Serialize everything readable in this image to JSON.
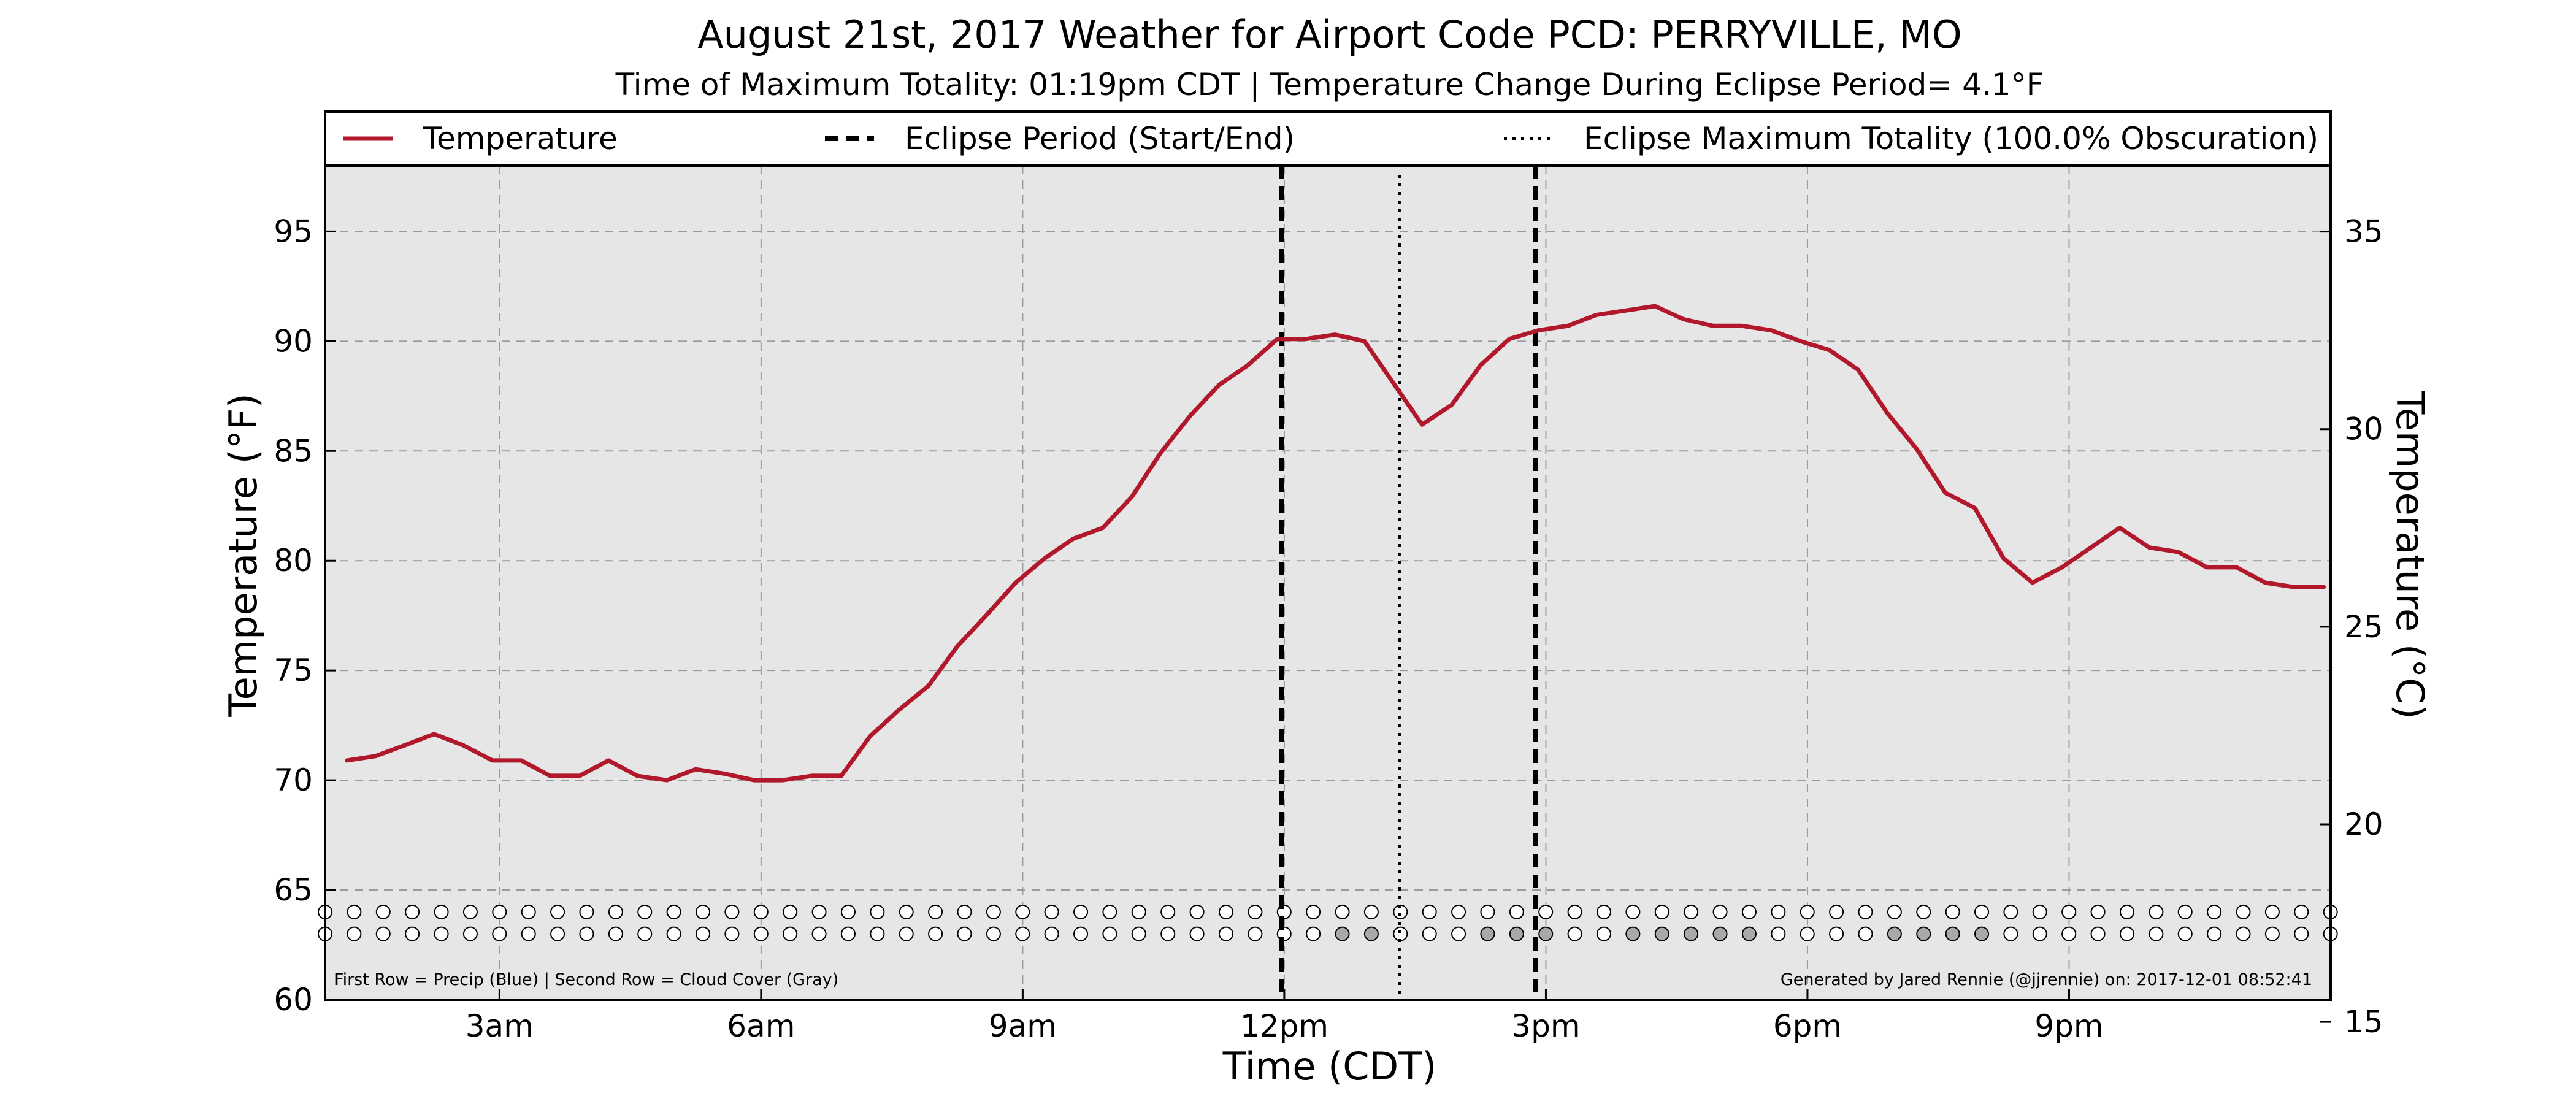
{
  "chart_data": {
    "type": "line",
    "title": "August 21st, 2017 Weather for Airport Code PCD: PERRYVILLE, MO",
    "subtitle": "Time of Maximum Totality: 01:19pm CDT | Temperature Change During Eclipse Period= 4.1$^\\circ$F",
    "subtitle_display": "Time of Maximum Totality: 01:19pm CDT | Temperature Change During Eclipse Period= 4.1°F",
    "xlabel": "Time (CDT)",
    "ylabel": "Temperature ($^\\circ$F)",
    "ylabel_display": "Temperature (°F)",
    "ylabel_right": "Temperature ($^\\circ$C)",
    "ylabel_right_display": "Temperature (°C)",
    "xlim": [
      1.0,
      24.0
    ],
    "ylim": [
      60,
      98
    ],
    "ylim_right": [
      15.56,
      36.67
    ],
    "x_ticks": [
      3,
      6,
      9,
      12,
      15,
      18,
      21
    ],
    "x_tick_labels": [
      "3am",
      "6am",
      "9am",
      "12pm",
      "3pm",
      "6pm",
      "9pm"
    ],
    "y_ticks": [
      60,
      65,
      70,
      75,
      80,
      85,
      90,
      95
    ],
    "y_tick_labels": [
      "60",
      "65",
      "70",
      "75",
      "80",
      "85",
      "90",
      "95"
    ],
    "y_ticks_right": [
      15,
      20,
      25,
      30,
      35
    ],
    "y_tick_labels_right": [
      "15",
      "20",
      "25",
      "30",
      "35"
    ],
    "grid": true,
    "legend_position": "top",
    "legend": [
      {
        "label": "Temperature",
        "style": "solid",
        "color": "#b2182b"
      },
      {
        "label": "Eclipse Period (Start/End)",
        "style": "dashed",
        "color": "#000000"
      },
      {
        "label": "Eclipse Maximum Totality (100.0% Obscuration)",
        "style": "dotted",
        "color": "#000000"
      }
    ],
    "series": [
      {
        "name": "Temperature",
        "color": "#b2182b",
        "x": [
          1.25,
          1.58,
          1.92,
          2.25,
          2.58,
          2.92,
          3.25,
          3.58,
          3.92,
          4.25,
          4.58,
          4.92,
          5.25,
          5.58,
          5.92,
          6.25,
          6.58,
          6.92,
          7.25,
          7.58,
          7.92,
          8.25,
          8.58,
          8.92,
          9.25,
          9.58,
          9.92,
          10.25,
          10.58,
          10.92,
          11.25,
          11.58,
          11.92,
          12.25,
          12.58,
          12.92,
          13.25,
          13.58,
          13.92,
          14.25,
          14.58,
          14.92,
          15.25,
          15.58,
          15.92,
          16.25,
          16.58,
          16.92,
          17.25,
          17.58,
          17.92,
          18.25,
          18.58,
          18.92,
          19.25,
          19.58,
          19.92,
          20.25,
          20.58,
          20.92,
          21.25,
          21.58,
          21.92,
          22.25,
          22.58,
          22.92,
          23.25,
          23.58,
          23.92
        ],
        "values": [
          70.9,
          71.1,
          71.6,
          72.1,
          71.6,
          70.9,
          70.9,
          70.2,
          70.2,
          70.9,
          70.2,
          70.0,
          70.5,
          70.3,
          70.0,
          70.0,
          70.2,
          70.2,
          72.0,
          73.2,
          74.3,
          76.1,
          77.5,
          79.0,
          80.1,
          81.0,
          81.5,
          82.9,
          84.9,
          86.6,
          88.0,
          88.9,
          90.1,
          90.1,
          90.3,
          90.0,
          88.1,
          86.2,
          87.1,
          88.9,
          90.1,
          90.5,
          90.7,
          91.2,
          91.4,
          91.6,
          91.0,
          90.7,
          90.7,
          90.5,
          90.0,
          89.6,
          88.7,
          86.7,
          85.1,
          83.1,
          82.4,
          80.1,
          79.0,
          79.7,
          80.6,
          81.5,
          80.6,
          80.4,
          79.7,
          79.7,
          79.0,
          78.8,
          78.8
        ]
      }
    ],
    "eclipse_start": "11:58am",
    "eclipse_start_hour": 11.97,
    "eclipse_max": "01:19pm",
    "eclipse_max_hour": 13.32,
    "eclipse_end": "02:53pm",
    "eclipse_end_hour": 14.88,
    "marker_rows": {
      "x_start": 1.0,
      "x_step": 0.3333,
      "count": 70,
      "precip_y": 64.0,
      "cloud_y": 63.0,
      "precip_fill": [
        "#ffffff"
      ],
      "cloud_gray_indices": [
        2,
        3,
        7,
        8,
        9,
        12,
        13,
        14,
        15,
        16,
        21,
        22,
        23,
        24
      ],
      "cloud_gray_offset_from": 33,
      "empty_color": "#ffffff",
      "gray_color": "#a9a9a9"
    },
    "footer_left": "First Row = Precip (Blue) | Second Row = Cloud Cover (Gray)",
    "footer_right": "Generated by Jared Rennie (@jjrennie) on: 2017-12-01 08:52:41",
    "colors": {
      "plot_background": "#e6e6e6",
      "temperature_line": "#b2182b",
      "grid": "#9a9a9a"
    }
  }
}
